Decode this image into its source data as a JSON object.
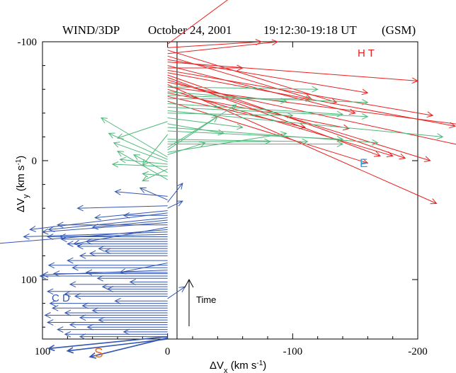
{
  "chart_data": {
    "type": "vector",
    "title": {
      "instrument": "WIND/3DP",
      "date": "October 24, 2001",
      "time_range": "19:12:30-19:18 UT",
      "frame": "(GSM)"
    },
    "xlabel": "ΔVx (km s-1)",
    "ylabel": "ΔVy (km s-1)",
    "axes": {
      "x_range": [
        100,
        -200
      ],
      "y_range": [
        -100,
        150
      ],
      "x_ticks": [
        "100",
        "0",
        "-100",
        "-200"
      ],
      "y_ticks": [
        "-100",
        "0",
        "100"
      ]
    },
    "annotations": {
      "ht": "H T",
      "e": "E",
      "cd": "C D",
      "s": "S",
      "time": "Time"
    },
    "colors": {
      "ht": "#e8201f",
      "mid": "#4fb87a",
      "cd": "#3456b0",
      "e": "#2aa5e0",
      "s": "#f26a1b"
    },
    "series": [
      {
        "key": "ht",
        "color": "#e8201f",
        "vectors": [
          {
            "y0": -98,
            "dx": -143,
            "dy": -111
          },
          {
            "y0": -95,
            "dx": -75,
            "dy": -5
          },
          {
            "y0": -93,
            "dx": -135,
            "dy": 44
          },
          {
            "y0": -90,
            "dx": -88,
            "dy": -10
          },
          {
            "y0": -88,
            "dx": -115,
            "dy": 36
          },
          {
            "y0": -85,
            "dx": -160,
            "dy": 28
          },
          {
            "y0": -83,
            "dx": -200,
            "dy": 16
          },
          {
            "y0": -80,
            "dx": -150,
            "dy": 40
          },
          {
            "y0": -78,
            "dx": -60,
            "dy": 0
          },
          {
            "y0": -76,
            "dx": -212,
            "dy": 38
          },
          {
            "y0": -74,
            "dx": -230,
            "dy": 45
          },
          {
            "y0": -72,
            "dx": -190,
            "dy": 70
          },
          {
            "y0": -70,
            "dx": -170,
            "dy": 66
          },
          {
            "y0": -68,
            "dx": -210,
            "dy": 68
          },
          {
            "y0": -66,
            "dx": -265,
            "dy": 60
          },
          {
            "y0": -64,
            "dx": -215,
            "dy": 100
          },
          {
            "y0": -62,
            "dx": -252,
            "dy": 34
          },
          {
            "y0": -60,
            "dx": -180,
            "dy": 56
          },
          {
            "y0": -57,
            "dx": -145,
            "dy": 30
          },
          {
            "y0": -54,
            "dx": -110,
            "dy": 26
          },
          {
            "y0": -50,
            "dx": -160,
            "dy": 52
          }
        ]
      },
      {
        "key": "mid",
        "color": "#4fb87a",
        "vectors": [
          {
            "y0": -62,
            "dx": -120,
            "dy": 2
          },
          {
            "y0": -58,
            "dx": -95,
            "dy": 8
          },
          {
            "y0": -55,
            "dx": -160,
            "dy": 6
          },
          {
            "y0": -52,
            "dx": -115,
            "dy": 0
          },
          {
            "y0": -48,
            "dx": -140,
            "dy": 9
          },
          {
            "y0": -45,
            "dx": -160,
            "dy": 8
          },
          {
            "y0": -42,
            "dx": -220,
            "dy": 22
          },
          {
            "y0": -40,
            "dx": -100,
            "dy": 2
          },
          {
            "y0": -36,
            "dx": -60,
            "dy": 8
          },
          {
            "y0": -33,
            "dx": 40,
            "dy": 14
          },
          {
            "y0": -31,
            "dx": -45,
            "dy": 8
          },
          {
            "y0": -28,
            "dx": -168,
            "dy": 13
          },
          {
            "y0": -25,
            "dx": -140,
            "dy": 7
          },
          {
            "y0": -22,
            "dx": 20,
            "dy": 26
          },
          {
            "y0": -18,
            "dx": -112,
            "dy": 2
          },
          {
            "y0": -16,
            "dx": -82,
            "dy": 0
          },
          {
            "y0": -14,
            "dx": -140,
            "dy": 0
          },
          {
            "y0": -11,
            "dx": -55,
            "dy": -36
          },
          {
            "y0": -9,
            "dx": -40,
            "dy": -28
          },
          {
            "y0": -7,
            "dx": -95,
            "dy": -16
          },
          {
            "y0": -5,
            "dx": -30,
            "dy": -10
          },
          {
            "y0": -3,
            "dx": 53,
            "dy": -33
          },
          {
            "y0": -1,
            "dx": 47,
            "dy": -22
          },
          {
            "y0": 1,
            "dx": 43,
            "dy": -16
          },
          {
            "y0": 3,
            "dx": 38,
            "dy": -4
          },
          {
            "y0": 5,
            "dx": 44,
            "dy": -2
          },
          {
            "y0": 7,
            "dx": 20,
            "dy": 10
          },
          {
            "y0": 10,
            "dx": 27,
            "dy": -15
          },
          {
            "y0": 13,
            "dx": 20,
            "dy": -2
          },
          {
            "y0": 16,
            "dx": 40,
            "dy": -24
          }
        ]
      },
      {
        "key": "cd",
        "color": "#3456b0",
        "vectors": [
          {
            "y0": 30,
            "dx": 42,
            "dy": -4
          },
          {
            "y0": 33,
            "dx": 22,
            "dy": -10
          },
          {
            "y0": 35,
            "dx": -12,
            "dy": -16
          },
          {
            "y0": 38,
            "dx": 72,
            "dy": 2
          },
          {
            "y0": 40,
            "dx": -12,
            "dy": -6
          },
          {
            "y0": 42,
            "dx": 58,
            "dy": 6
          },
          {
            "y0": 44,
            "dx": 110,
            "dy": 14
          },
          {
            "y0": 46,
            "dx": 35,
            "dy": 0
          },
          {
            "y0": 48,
            "dx": 95,
            "dy": 10
          },
          {
            "y0": 50,
            "dx": 60,
            "dy": 6
          },
          {
            "y0": 52,
            "dx": 100,
            "dy": 8
          },
          {
            "y0": 54,
            "dx": 88,
            "dy": 0
          },
          {
            "y0": 56,
            "dx": 75,
            "dy": 14
          },
          {
            "y0": 58,
            "dx": 140,
            "dy": 12
          },
          {
            "y0": 60,
            "dx": 115,
            "dy": 4
          },
          {
            "y0": 62,
            "dx": 86,
            "dy": 2
          },
          {
            "y0": 64,
            "dx": 96,
            "dy": 0
          },
          {
            "y0": 66,
            "dx": 85,
            "dy": 0
          },
          {
            "y0": 68,
            "dx": 65,
            "dy": 0
          },
          {
            "y0": 70,
            "dx": 80,
            "dy": 0
          },
          {
            "y0": 72,
            "dx": 72,
            "dy": 0
          },
          {
            "y0": 74,
            "dx": 55,
            "dy": 0
          },
          {
            "y0": 76,
            "dx": 50,
            "dy": 0
          },
          {
            "y0": 78,
            "dx": 62,
            "dy": 0
          },
          {
            "y0": 80,
            "dx": 70,
            "dy": 0
          },
          {
            "y0": 84,
            "dx": 80,
            "dy": 0
          },
          {
            "y0": 86,
            "dx": 38,
            "dy": 8
          },
          {
            "y0": 88,
            "dx": 95,
            "dy": 0
          },
          {
            "y0": 90,
            "dx": 76,
            "dy": 0
          },
          {
            "y0": 92,
            "dx": 100,
            "dy": 4
          },
          {
            "y0": 94,
            "dx": 65,
            "dy": 0
          },
          {
            "y0": 95,
            "dx": 91,
            "dy": 0
          },
          {
            "y0": 97,
            "dx": 102,
            "dy": 0
          },
          {
            "y0": 99,
            "dx": 56,
            "dy": 0
          },
          {
            "y0": 102,
            "dx": 30,
            "dy": 0
          },
          {
            "y0": 104,
            "dx": 78,
            "dy": 0
          },
          {
            "y0": 106,
            "dx": 52,
            "dy": 0
          },
          {
            "y0": 108,
            "dx": 48,
            "dy": 0
          },
          {
            "y0": 110,
            "dx": 96,
            "dy": 0
          },
          {
            "y0": 112,
            "dx": 82,
            "dy": 0
          },
          {
            "y0": 114,
            "dx": 74,
            "dy": 0
          },
          {
            "y0": 116,
            "dx": -14,
            "dy": -10
          },
          {
            "y0": 118,
            "dx": 42,
            "dy": 0
          },
          {
            "y0": 120,
            "dx": 94,
            "dy": 0
          },
          {
            "y0": 122,
            "dx": 68,
            "dy": 0
          },
          {
            "y0": 124,
            "dx": 92,
            "dy": 0
          },
          {
            "y0": 126,
            "dx": 60,
            "dy": 0
          },
          {
            "y0": 128,
            "dx": 82,
            "dy": 0
          },
          {
            "y0": 130,
            "dx": 98,
            "dy": 0
          },
          {
            "y0": 132,
            "dx": 70,
            "dy": 0
          },
          {
            "y0": 134,
            "dx": 55,
            "dy": 0
          },
          {
            "y0": 136,
            "dx": 96,
            "dy": 0
          },
          {
            "y0": 138,
            "dx": 78,
            "dy": 0
          },
          {
            "y0": 140,
            "dx": 64,
            "dy": 0
          },
          {
            "y0": 142,
            "dx": 88,
            "dy": 0
          },
          {
            "y0": 144,
            "dx": 35,
            "dy": 0
          },
          {
            "y0": 146,
            "dx": 82,
            "dy": 0
          },
          {
            "y0": 148,
            "dx": 70,
            "dy": 0
          }
        ]
      },
      {
        "key": "s",
        "color": "#3456b0",
        "vectors": [
          {
            "y0": 148,
            "dx": 95,
            "dy": 10
          },
          {
            "y0": 149,
            "dx": 62,
            "dy": 16
          },
          {
            "y0": 150,
            "dx": 80,
            "dy": 10
          }
        ]
      }
    ]
  }
}
